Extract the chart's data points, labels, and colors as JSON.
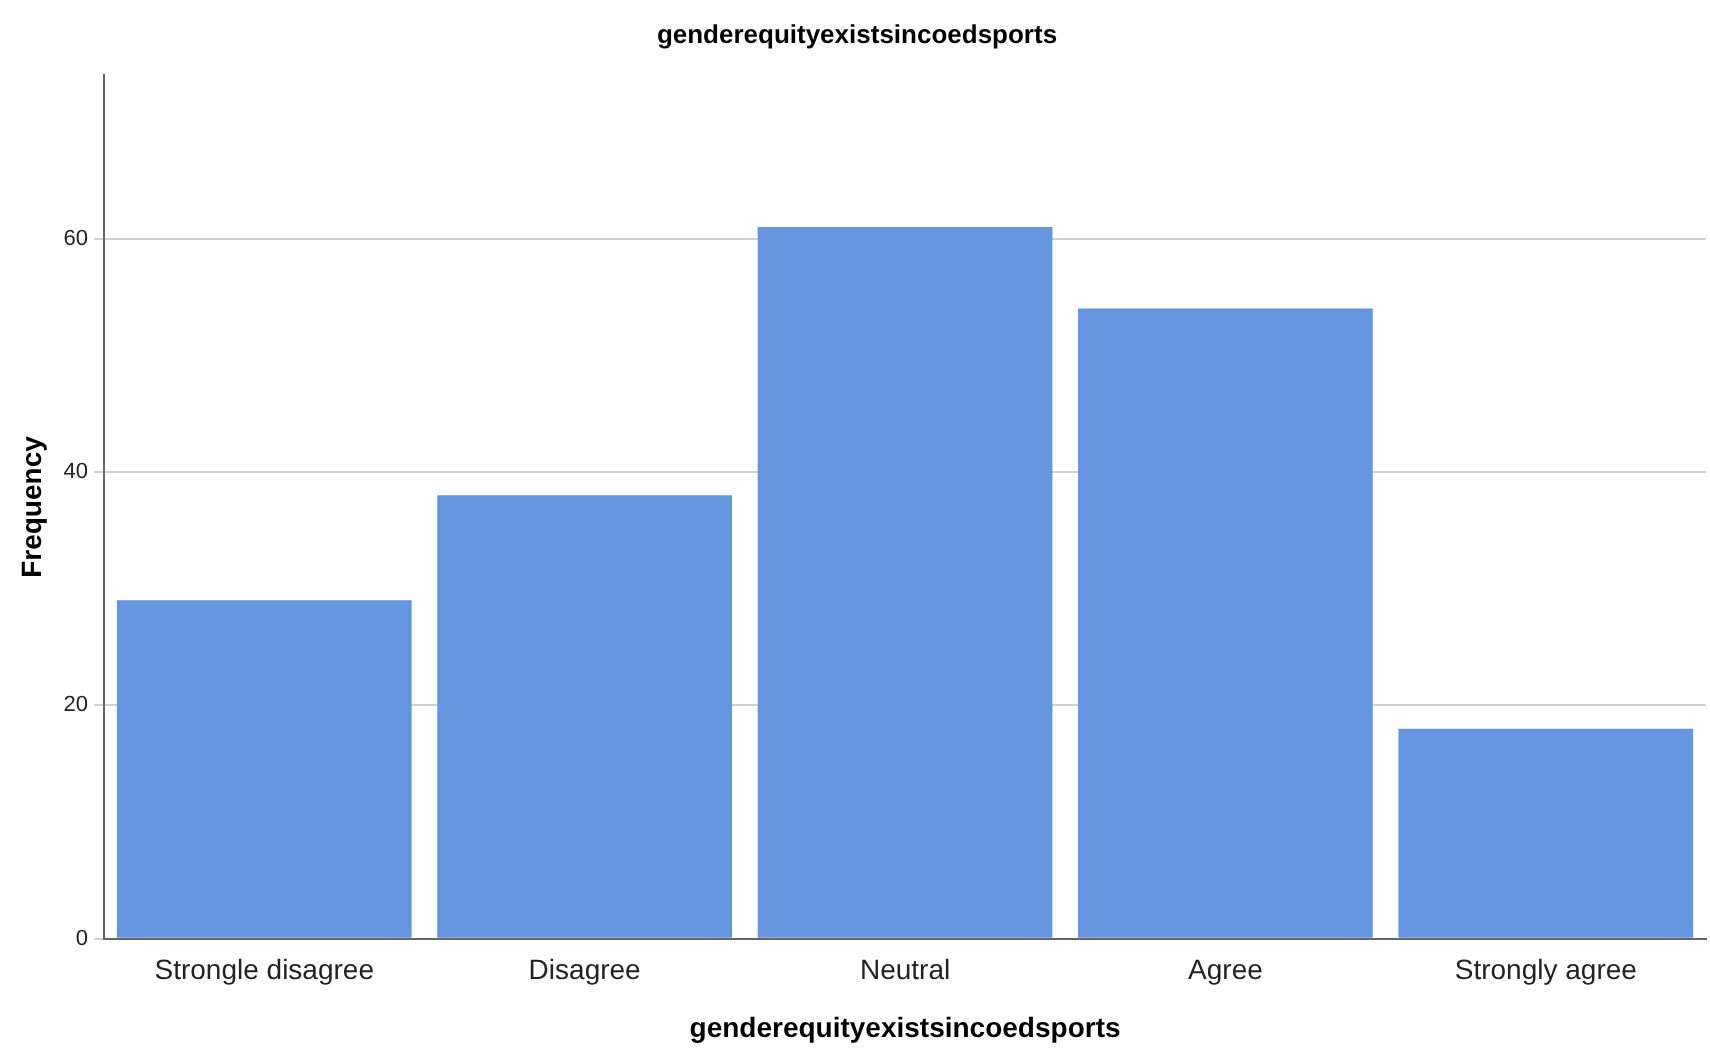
{
  "chart_data": {
    "type": "bar",
    "title": "genderequityexistsincoedsports",
    "xlabel": "genderequityexistsincoedsports",
    "ylabel": "Frequency",
    "categories": [
      "Strongle disagree",
      "Disagree",
      "Neutral",
      "Agree",
      "Strongly agree"
    ],
    "values": [
      29,
      38,
      61,
      54,
      18
    ],
    "color": "#6495de",
    "ylim": [
      0,
      74
    ],
    "yticks": [
      0,
      20,
      40,
      60
    ],
    "grid": "y",
    "legend": false
  }
}
